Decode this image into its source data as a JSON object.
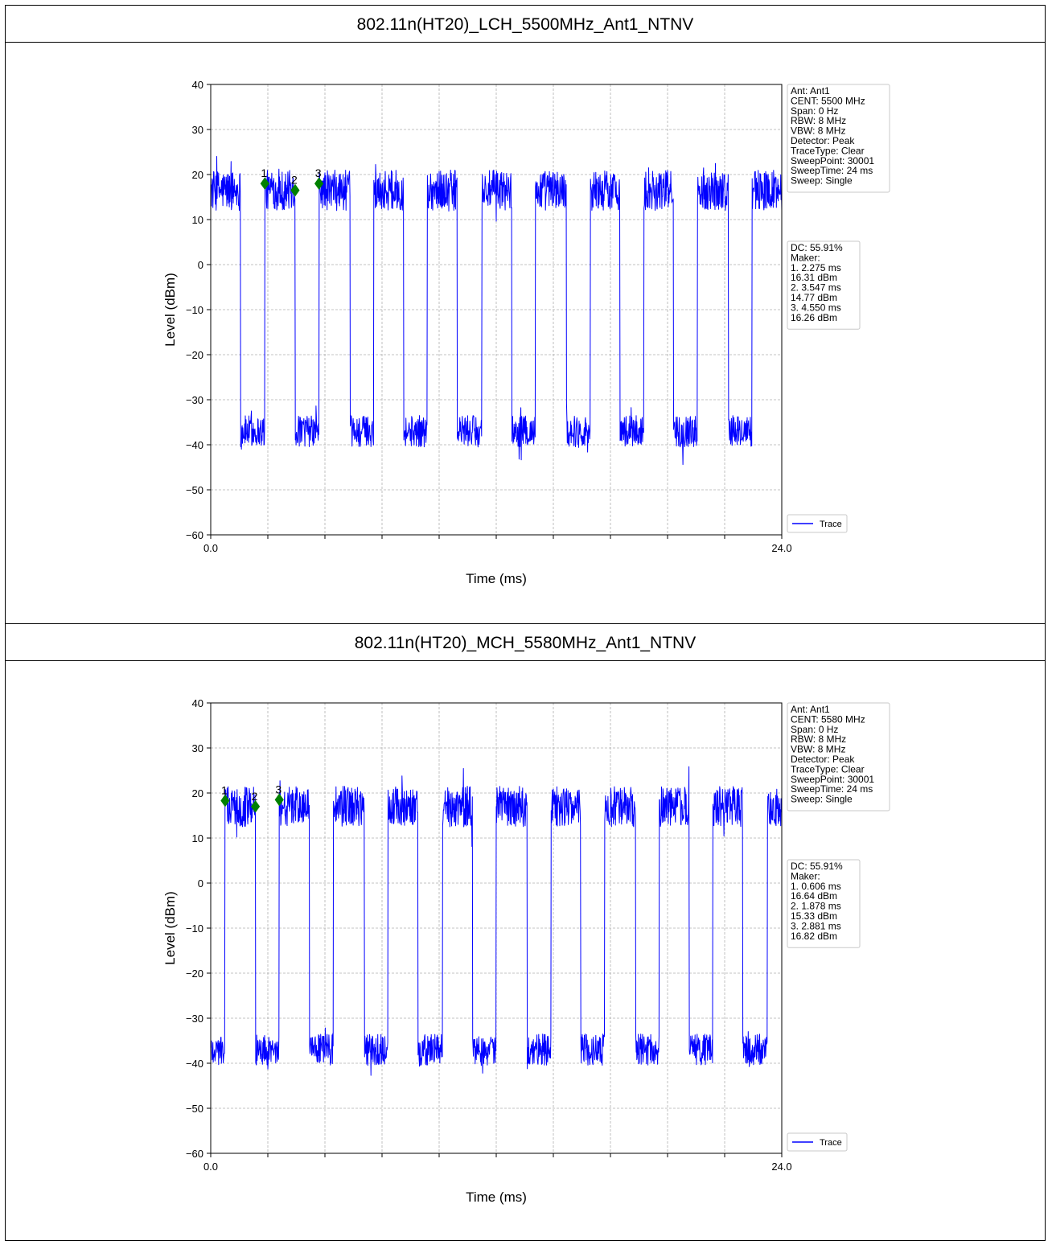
{
  "chart_data": [
    {
      "type": "line",
      "title": "802.11n(HT20)_LCH_5500MHz_Ant1_NTNV",
      "xlabel": "Time (ms)",
      "ylabel": "Level (dBm)",
      "xlim": [
        0,
        24.0
      ],
      "ylim": [
        -60,
        40
      ],
      "x_tick_labels": [
        "0.0",
        "24.0"
      ],
      "y_ticks": [
        40,
        30,
        20,
        10,
        0,
        -10,
        -20,
        -30,
        -40,
        -50,
        -60
      ],
      "y_tick_labels": [
        "40",
        "30",
        "20",
        "10",
        "0",
        "−10",
        "−20",
        "−30",
        "−40",
        "−50",
        "−60"
      ],
      "grid": true,
      "series": [
        {
          "name": "Trace",
          "color": "#0000ff"
        }
      ],
      "bursts_on_ms": [
        [
          0,
          1.25
        ],
        [
          2.27,
          3.55
        ],
        [
          4.55,
          5.85
        ],
        [
          6.85,
          8.1
        ],
        [
          9.1,
          10.35
        ],
        [
          11.4,
          12.65
        ],
        [
          13.65,
          14.95
        ],
        [
          15.95,
          17.2
        ],
        [
          18.2,
          19.45
        ],
        [
          20.45,
          21.75
        ],
        [
          22.75,
          24.0
        ]
      ],
      "on_level_dbm": 16.5,
      "off_level_dbm": -37,
      "legend_position": "lower-right",
      "info_lines": [
        "Ant: Ant1",
        "CENT: 5500 MHz",
        "Span: 0 Hz",
        "RBW: 8 MHz",
        "VBW: 8 MHz",
        "Detector: Peak",
        "TraceType: Clear",
        "SweepPoint: 30001",
        "SweepTime: 24 ms",
        "Sweep: Single"
      ],
      "marker_lines": [
        "DC: 55.91%",
        "Maker:",
        "1. 2.275 ms",
        "      16.31 dBm",
        "2. 3.547 ms",
        "      14.77 dBm",
        "3. 4.550 ms",
        "      16.26 dBm"
      ],
      "markers": [
        {
          "label": "1",
          "x": 2.275,
          "y": 18.0
        },
        {
          "label": "2",
          "x": 3.547,
          "y": 16.5
        },
        {
          "label": "3",
          "x": 4.55,
          "y": 18.0
        }
      ],
      "marker_color": "#008000"
    },
    {
      "type": "line",
      "title": "802.11n(HT20)_MCH_5580MHz_Ant1_NTNV",
      "xlabel": "Time (ms)",
      "ylabel": "Level (dBm)",
      "xlim": [
        0,
        24.0
      ],
      "ylim": [
        -60,
        40
      ],
      "x_tick_labels": [
        "0.0",
        "24.0"
      ],
      "y_ticks": [
        40,
        30,
        20,
        10,
        0,
        -10,
        -20,
        -30,
        -40,
        -50,
        -60
      ],
      "y_tick_labels": [
        "40",
        "30",
        "20",
        "10",
        "0",
        "−10",
        "−20",
        "−30",
        "−40",
        "−50",
        "−60"
      ],
      "grid": true,
      "series": [
        {
          "name": "Trace",
          "color": "#0000ff"
        }
      ],
      "bursts_on_ms": [
        [
          0.6,
          1.88
        ],
        [
          2.88,
          4.15
        ],
        [
          5.15,
          6.45
        ],
        [
          7.45,
          8.7
        ],
        [
          9.75,
          11.0
        ],
        [
          12.0,
          13.3
        ],
        [
          14.3,
          15.55
        ],
        [
          16.55,
          17.85
        ],
        [
          18.85,
          20.1
        ],
        [
          21.1,
          22.35
        ],
        [
          23.4,
          24.0
        ]
      ],
      "on_level_dbm": 17.0,
      "off_level_dbm": -37,
      "legend_position": "lower-right",
      "info_lines": [
        "Ant: Ant1",
        "CENT: 5580 MHz",
        "Span: 0 Hz",
        "RBW: 8 MHz",
        "VBW: 8 MHz",
        "Detector: Peak",
        "TraceType: Clear",
        "SweepPoint: 30001",
        "SweepTime: 24 ms",
        "Sweep: Single"
      ],
      "marker_lines": [
        "DC: 55.91%",
        "Maker:",
        "1. 0.606 ms",
        "      16.64 dBm",
        "2. 1.878 ms",
        "      15.33 dBm",
        "3. 2.881 ms",
        "      16.82 dBm"
      ],
      "markers": [
        {
          "label": "1",
          "x": 0.606,
          "y": 18.3
        },
        {
          "label": "2",
          "x": 1.878,
          "y": 17.0
        },
        {
          "label": "3",
          "x": 2.881,
          "y": 18.5
        }
      ],
      "marker_color": "#008000"
    }
  ]
}
